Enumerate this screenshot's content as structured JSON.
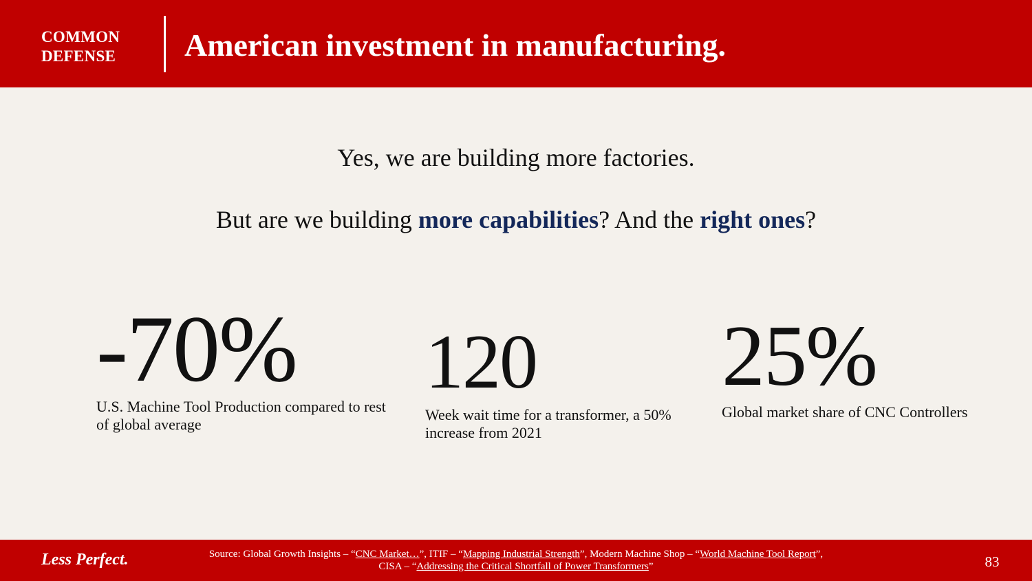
{
  "header": {
    "org_line1": "COMMON",
    "org_line2": "DEFENSE",
    "title": "American investment in manufacturing."
  },
  "intro": {
    "line1": "Yes, we are building more factories.",
    "line2_part1": "But are we building ",
    "line2_hl1": "more capabilities",
    "line2_part2": "? And the ",
    "line2_hl2": "right ones",
    "line2_part3": "?"
  },
  "stats": [
    {
      "value": "-70%",
      "caption": "U.S. Machine Tool Production compared to rest of global average"
    },
    {
      "value": "120",
      "caption": "Week wait time for a transformer, a 50% increase from 2021"
    },
    {
      "value": "25%",
      "caption": "Global market share of CNC Controllers"
    }
  ],
  "footer": {
    "brand": "Less Perfect.",
    "source": {
      "prefix": "Source: Global Growth Insights – “",
      "link1": "CNC Market…",
      "sep1": "”, ITIF – “",
      "link2": "Mapping Industrial Strength",
      "sep2": "”, Modern Machine Shop – “",
      "link3": "World Machine Tool Report",
      "sep3": "”,",
      "line2_prefix": "CISA – “",
      "link4": "Addressing the Critical Shortfall of Power Transformers",
      "line2_suffix": "”"
    },
    "page_number": "83"
  },
  "colors": {
    "brand_red": "#c00000",
    "background": "#f4f1ec",
    "highlight_navy": "#14285a"
  }
}
